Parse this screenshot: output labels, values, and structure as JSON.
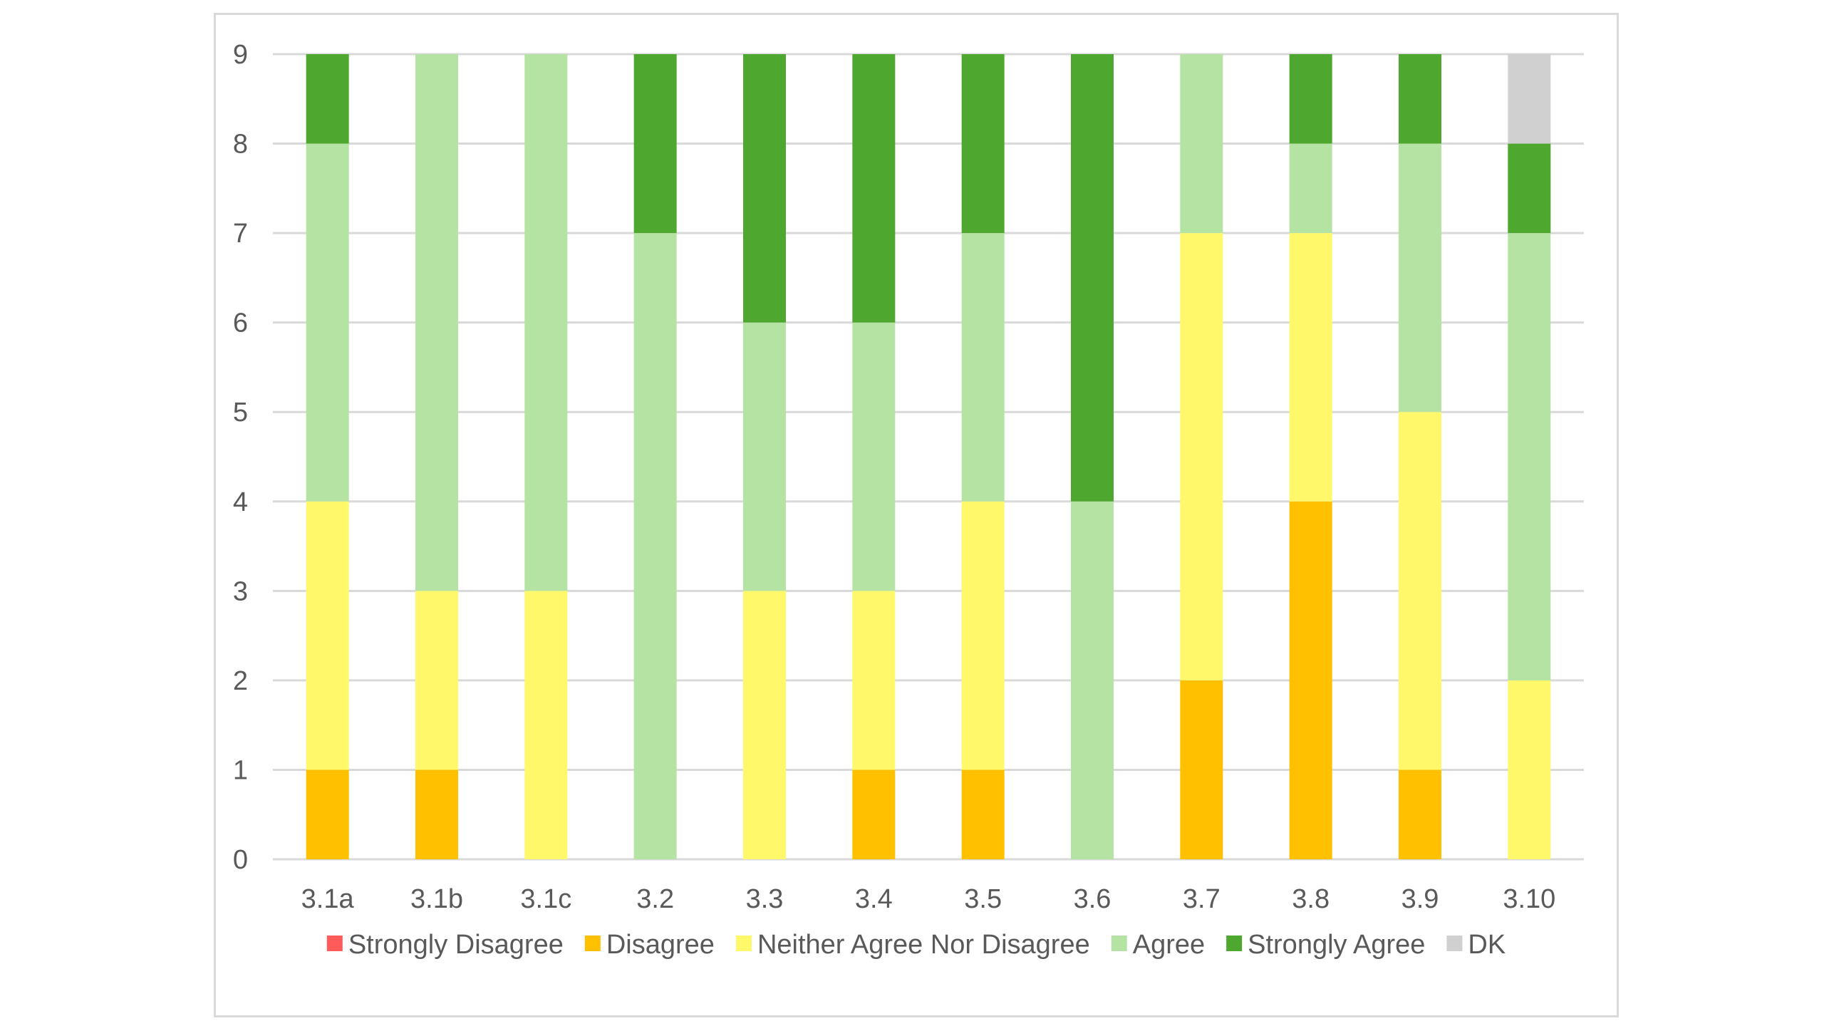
{
  "chart_data": {
    "type": "bar",
    "stacked": true,
    "title": "",
    "xlabel": "",
    "ylabel": "",
    "ylim": [
      0,
      9
    ],
    "yticks": [
      "0",
      "1",
      "2",
      "3",
      "4",
      "5",
      "6",
      "7",
      "8",
      "9"
    ],
    "grid": true,
    "legend_position": "bottom",
    "categories": [
      "3.1a",
      "3.1b",
      "3.1c",
      "3.2",
      "3.3",
      "3.4",
      "3.5",
      "3.6",
      "3.7",
      "3.8",
      "3.9",
      "3.10"
    ],
    "series": [
      {
        "name": "Strongly Disagree",
        "color": "#FF5B5B",
        "values": [
          0,
          0,
          0,
          0,
          0,
          0,
          0,
          0,
          0,
          0,
          0,
          0
        ]
      },
      {
        "name": "Disagree",
        "color": "#FFC000",
        "values": [
          1,
          1,
          0,
          0,
          0,
          1,
          1,
          0,
          2,
          4,
          1,
          0
        ]
      },
      {
        "name": "Neither Agree Nor Disagree",
        "color": "#FFF86B",
        "values": [
          3,
          2,
          3,
          0,
          3,
          2,
          3,
          0,
          5,
          3,
          4,
          2
        ]
      },
      {
        "name": "Agree",
        "color": "#B5E3A3",
        "values": [
          4,
          6,
          6,
          7,
          3,
          3,
          3,
          4,
          2,
          1,
          3,
          5
        ]
      },
      {
        "name": "Strongly Agree",
        "color": "#4EA72E",
        "values": [
          1,
          0,
          0,
          2,
          3,
          3,
          2,
          5,
          0,
          1,
          1,
          1
        ]
      },
      {
        "name": "DK",
        "color": "#D0D0D0",
        "values": [
          0,
          0,
          0,
          0,
          0,
          0,
          0,
          0,
          0,
          0,
          0,
          1
        ]
      }
    ]
  },
  "colors": {
    "gridline": "#D9D9D9",
    "text": "#595959",
    "frame": "#D9D9D9"
  }
}
